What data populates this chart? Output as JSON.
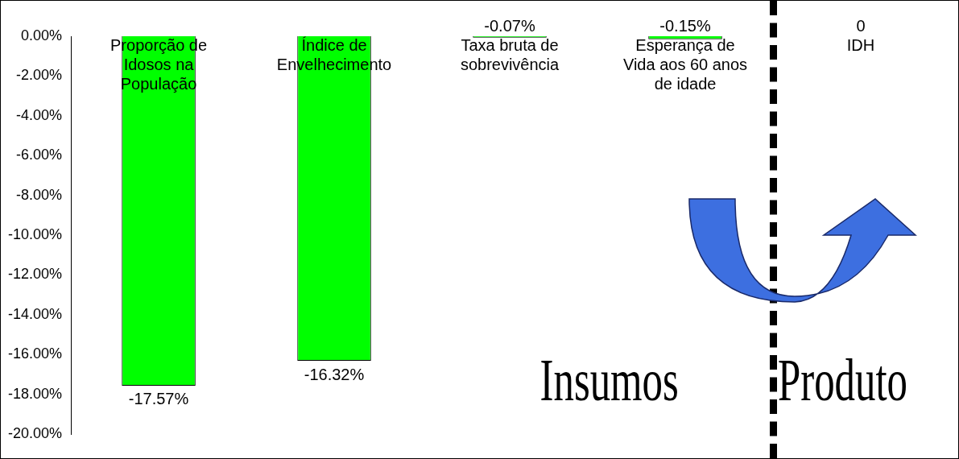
{
  "chart_data": {
    "type": "bar",
    "categories": [
      "Proporção de Idosos na População",
      "Índice de Envelhecimento",
      "Taxa bruta de sobrevivência",
      "Esperança de Vida aos 60 anos de idade",
      "IDH"
    ],
    "values": [
      -17.57,
      -16.32,
      -0.07,
      -0.15,
      0
    ],
    "value_labels": [
      "-17.57%",
      "-16.32%",
      "-0.07%",
      "-0.15%",
      "0"
    ],
    "color": "#00ff00",
    "ylim": [
      -20,
      0
    ],
    "yticks": [
      {
        "value": 0,
        "label": "0.00%"
      },
      {
        "value": -2,
        "label": "-2.00%"
      },
      {
        "value": -4,
        "label": "-4.00%"
      },
      {
        "value": -6,
        "label": "-6.00%"
      },
      {
        "value": -8,
        "label": "-8.00%"
      },
      {
        "value": -10,
        "label": "-10.00%"
      },
      {
        "value": -12,
        "label": "-12.00%"
      },
      {
        "value": -14,
        "label": "-14.00%"
      },
      {
        "value": -16,
        "label": "-16.00%"
      },
      {
        "value": -18,
        "label": "-18.00%"
      },
      {
        "value": -20,
        "label": "-20.00%"
      }
    ],
    "annotations": [
      "Insumos",
      "Produto"
    ],
    "grid": false,
    "legend": false
  }
}
